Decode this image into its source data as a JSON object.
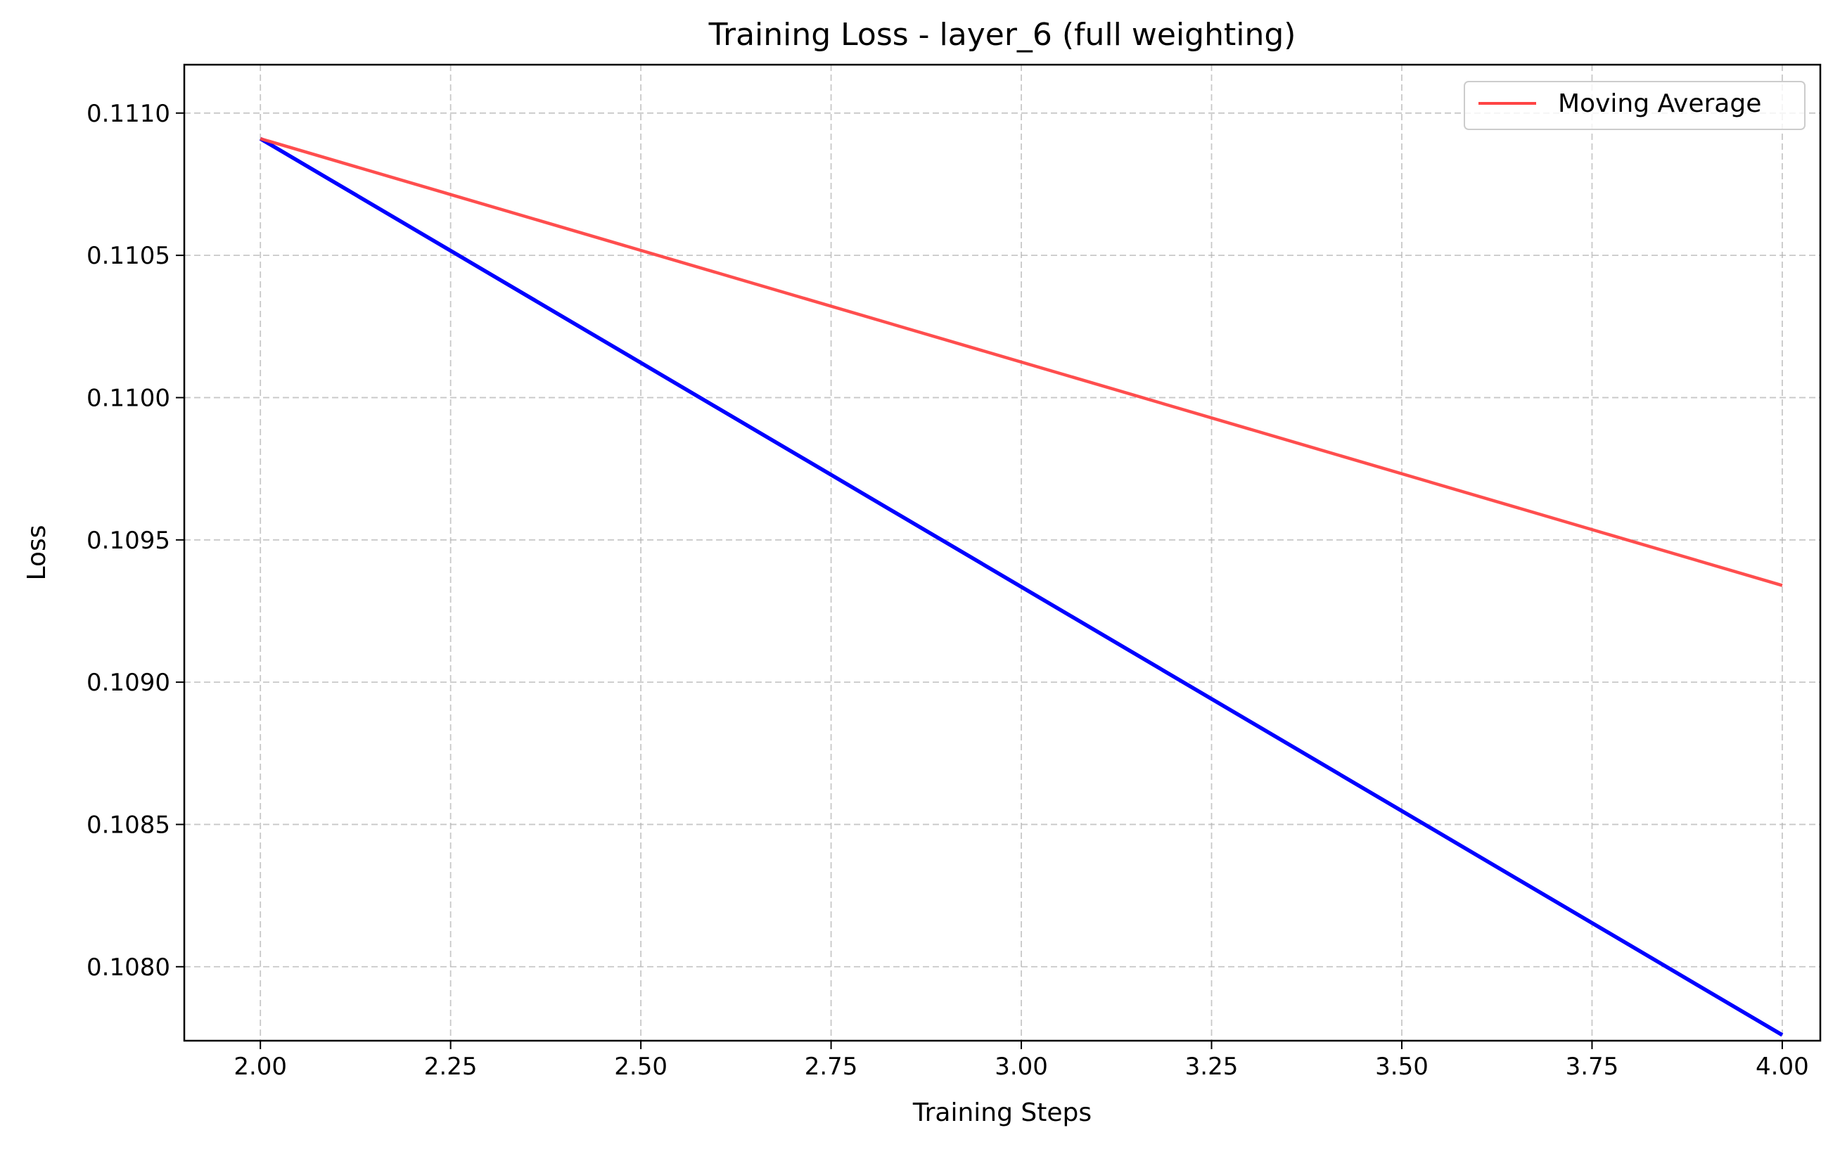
{
  "chart_data": {
    "type": "line",
    "title": "Training Loss - layer_6 (full weighting)",
    "xlabel": "Training Steps",
    "ylabel": "Loss",
    "xlim": [
      1.9,
      4.05
    ],
    "ylim": [
      0.10774,
      0.11117
    ],
    "xticks": [
      2.0,
      2.25,
      2.5,
      2.75,
      3.0,
      3.25,
      3.5,
      3.75,
      4.0
    ],
    "xtick_labels": [
      "2.00",
      "2.25",
      "2.50",
      "2.75",
      "3.00",
      "3.25",
      "3.50",
      "3.75",
      "4.00"
    ],
    "yticks": [
      0.108,
      0.1085,
      0.109,
      0.1095,
      0.11,
      0.1105,
      0.111
    ],
    "ytick_labels": [
      "0.1080",
      "0.1085",
      "0.1090",
      "0.1095",
      "0.1100",
      "0.1105",
      "0.1110"
    ],
    "grid": true,
    "legend_position": "top-right",
    "series": [
      {
        "color": "#0000ff",
        "x": [
          2,
          4
        ],
        "y": [
          0.11091,
          0.10776
        ]
      },
      {
        "name": "Moving Average",
        "color": "#ff4444",
        "x": [
          2,
          4
        ],
        "y": [
          0.11091,
          0.10934
        ]
      }
    ]
  }
}
